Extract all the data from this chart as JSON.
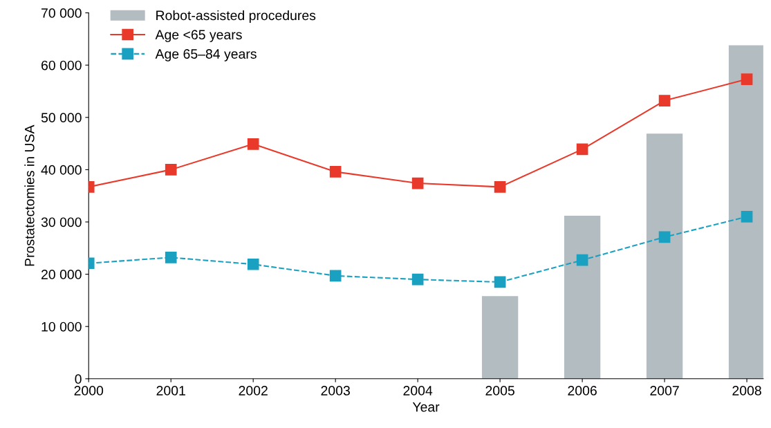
{
  "chart_data": {
    "type": "line",
    "xlabel": "Year",
    "ylabel": "Prostatectomies in USA",
    "x": [
      2000,
      2001,
      2002,
      2003,
      2004,
      2005,
      2006,
      2007,
      2008
    ],
    "series": [
      {
        "name": "Robot-assisted procedures",
        "type": "bar",
        "color": "#b3bcc1",
        "values": [
          null,
          null,
          null,
          null,
          null,
          15800,
          31200,
          46900,
          63800
        ]
      },
      {
        "name": "Age <65 years",
        "color": "#e8392a",
        "line_style": "solid",
        "values": [
          36700,
          40000,
          44900,
          39600,
          37400,
          36700,
          43900,
          53200,
          57300
        ]
      },
      {
        "name": "Age 65–84 years",
        "color": "#1aa0c0",
        "line_style": "dashed",
        "values": [
          22100,
          23200,
          21900,
          19700,
          19000,
          18500,
          22700,
          27100,
          31000
        ]
      }
    ],
    "marker": "square",
    "xlim": [
      2000,
      2008.2
    ],
    "xticks": [
      2000,
      2001,
      2002,
      2003,
      2004,
      2005,
      2006,
      2007,
      2008
    ],
    "ylim": [
      0,
      70000
    ],
    "yticks": [
      {
        "value": 0,
        "label": "0"
      },
      {
        "value": 10000,
        "label": "10 000"
      },
      {
        "value": 20000,
        "label": "20 000"
      },
      {
        "value": 30000,
        "label": "30 000"
      },
      {
        "value": 40000,
        "label": "40 000"
      },
      {
        "value": 50000,
        "label": "50 000"
      },
      {
        "value": 60000,
        "label": "60 000"
      },
      {
        "value": 70000,
        "label": "70 000"
      }
    ],
    "grid": false,
    "legend": "top left"
  }
}
